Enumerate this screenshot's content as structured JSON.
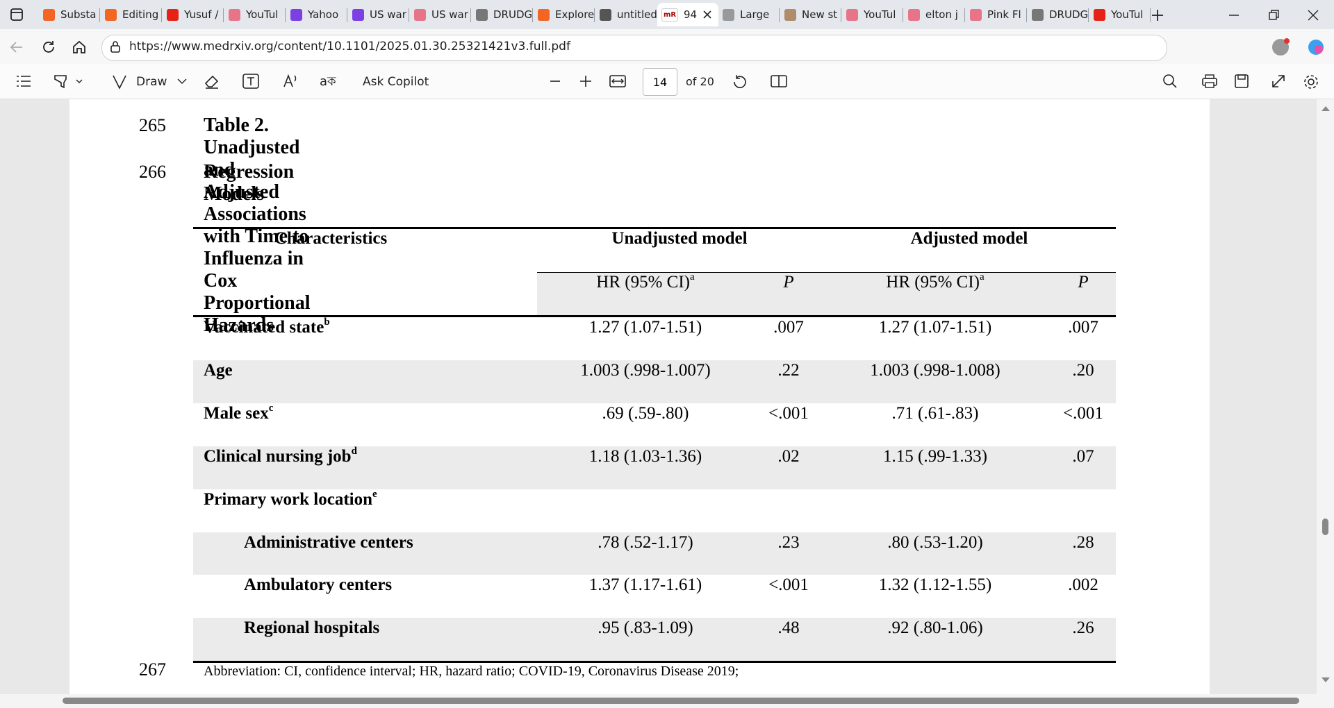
{
  "browser": {
    "tabs": [
      {
        "label": "Substa",
        "color": "#f26522"
      },
      {
        "label": "Editing",
        "color": "#f26522"
      },
      {
        "label": "Yusuf /",
        "color": "#e62117"
      },
      {
        "label": "YouTul",
        "color": "#e8748a"
      },
      {
        "label": "Yahoo",
        "color": "#7b3fe4"
      },
      {
        "label": "US war",
        "color": "#7b3fe4"
      },
      {
        "label": "US war",
        "color": "#e8748a"
      },
      {
        "label": "DRUDG",
        "color": "#777777"
      },
      {
        "label": "Explore",
        "color": "#f26522"
      },
      {
        "label": "untitled",
        "color": "#555555"
      },
      {
        "label": "94",
        "color": "#ffffff",
        "active": true
      },
      {
        "label": "Large",
        "color": "#999999"
      },
      {
        "label": "New st",
        "color": "#b08c6a"
      },
      {
        "label": "YouTul",
        "color": "#e8748a"
      },
      {
        "label": "elton j",
        "color": "#e8748a"
      },
      {
        "label": "Pink Fl",
        "color": "#e8748a"
      },
      {
        "label": "DRUDG",
        "color": "#777777"
      },
      {
        "label": "YouTul",
        "color": "#e62117"
      }
    ],
    "url": "https://www.medrxiv.org/content/10.1101/2025.01.30.25321421v3.full.pdf",
    "toolbar": {
      "draw": "Draw",
      "copilot": "Ask Copilot",
      "page": "14",
      "of": "of 20"
    }
  },
  "document": {
    "lines": [
      "265",
      "266",
      "267"
    ],
    "title_line1": "Table 2. Unadjusted and Adjusted Associations with Time to Influenza in Cox Proportional Hazards",
    "title_line2": "Regression Models",
    "table": {
      "headers": [
        "Characteristics",
        "Unadjusted model",
        "Adjusted model"
      ],
      "subheaders": [
        {
          "text": "HR (95% CI)",
          "sup": "a"
        },
        {
          "text": "P"
        },
        {
          "text": "HR (95% CI)",
          "sup": "a"
        },
        {
          "text": "P"
        }
      ],
      "rows": [
        {
          "label": "Vaccinated state",
          "sup": "b",
          "cells": [
            "1.27 (1.07-1.51)",
            ".007",
            "1.27 (1.07-1.51)",
            ".007"
          ]
        },
        {
          "label": "Age",
          "cells": [
            "1.003 (.998-1.007)",
            ".22",
            "1.003 (.998-1.008)",
            ".20"
          ]
        },
        {
          "label": "Male sex",
          "sup": "c",
          "cells": [
            ".69 (.59-.80)",
            "<.001",
            ".71 (.61-.83)",
            "<.001"
          ]
        },
        {
          "label": "Clinical nursing job",
          "sup": "d",
          "cells": [
            "1.18 (1.03-1.36)",
            ".02",
            "1.15 (.99-1.33)",
            ".07"
          ]
        },
        {
          "label": "Primary work location",
          "sup": "e"
        },
        {
          "label": "Administrative centers",
          "indent": true,
          "cells": [
            ".78 (.52-1.17)",
            ".23",
            ".80 (.53-1.20)",
            ".28"
          ]
        },
        {
          "label": "Ambulatory centers",
          "indent": true,
          "cells": [
            "1.37 (1.17-1.61)",
            "<.001",
            "1.32 (1.12-1.55)",
            ".002"
          ]
        },
        {
          "label": "Regional hospitals",
          "indent": true,
          "cells": [
            ".95 (.83-1.09)",
            ".48",
            ".92 (.80-1.06)",
            ".26"
          ]
        }
      ]
    },
    "footnote": "Abbreviation: CI, confidence interval; HR, hazard ratio; COVID-19, Coronavirus Disease 2019;"
  }
}
